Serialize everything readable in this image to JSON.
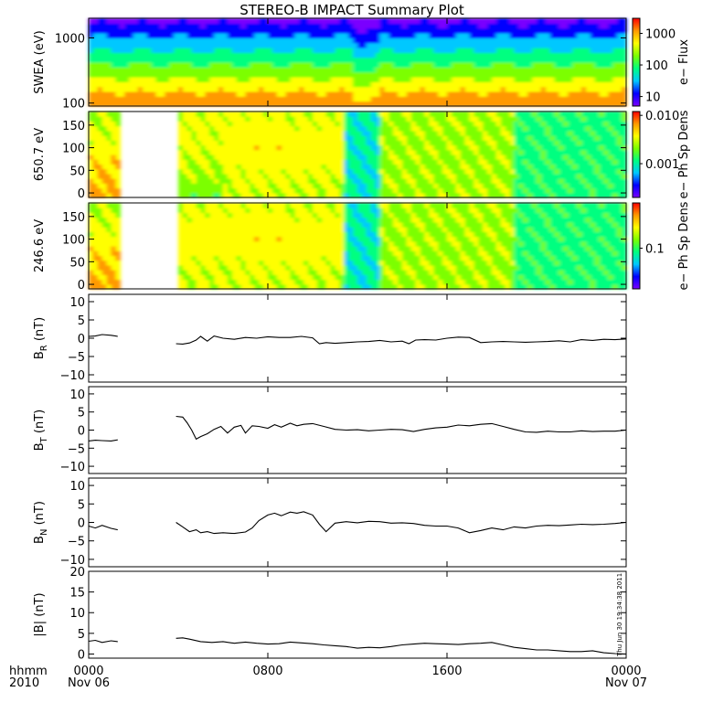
{
  "title": "STEREO-B IMPACT Summary Plot",
  "timestamp_stamp": "Thu Jun 30 19:34:38 2011",
  "x_axis": {
    "row1_label": "hhmm",
    "row2_label": "2010",
    "ticks": [
      {
        "hour": 0,
        "label": "0000",
        "sub": "Nov 06"
      },
      {
        "hour": 8,
        "label": "0800",
        "sub": ""
      },
      {
        "hour": 16,
        "label": "1600",
        "sub": ""
      },
      {
        "hour": 24,
        "label": "0000",
        "sub": "Nov 07"
      }
    ],
    "range_hours": [
      0,
      24
    ]
  },
  "colors": {
    "trace": "#000000",
    "spectrogram_scale": [
      "#7a00ff",
      "#0000ff",
      "#00c8ff",
      "#00ff80",
      "#7cff00",
      "#ffff00",
      "#ff9900",
      "#ff0000"
    ]
  },
  "chart_data": [
    {
      "type": "heatmap",
      "name": "swea",
      "ylabel": "SWEA (eV)",
      "y_scale": "log",
      "ylim": [
        90,
        2000
      ],
      "yticks": [
        {
          "value": 100,
          "label": "100"
        },
        {
          "value": 1000,
          "label": "1000"
        }
      ],
      "colorbar": {
        "label": "e− Flux",
        "scale": "log",
        "ticks": [
          {
            "value": 10,
            "label": "10"
          },
          {
            "value": 100,
            "label": "100"
          },
          {
            "value": 1000,
            "label": "1000"
          }
        ],
        "range": [
          5,
          3000
        ]
      },
      "data_gaps_hours": [],
      "dip_hours": [
        11.8,
        13.0
      ]
    },
    {
      "type": "heatmap",
      "name": "pad650",
      "ylabel": "650.7 eV",
      "ylim": [
        -10,
        180
      ],
      "yticks": [
        {
          "value": 0,
          "label": "0"
        },
        {
          "value": 50,
          "label": "50"
        },
        {
          "value": 100,
          "label": "100"
        },
        {
          "value": 150,
          "label": "150"
        }
      ],
      "colorbar": {
        "label": "e− Ph Sp Dens",
        "scale": "log",
        "ticks": [
          {
            "value": 0.001,
            "label": "0.001"
          },
          {
            "value": 0.01,
            "label": "0.010"
          }
        ],
        "range": [
          0.0002,
          0.012
        ]
      },
      "data_gaps_hours": [
        [
          1.3,
          3.9
        ]
      ],
      "dip_hours": [
        11.5,
        13.0
      ]
    },
    {
      "type": "heatmap",
      "name": "pad246",
      "ylabel": "246.6 eV",
      "ylim": [
        -10,
        180
      ],
      "yticks": [
        {
          "value": 0,
          "label": "0"
        },
        {
          "value": 50,
          "label": "50"
        },
        {
          "value": 100,
          "label": "100"
        },
        {
          "value": 150,
          "label": "150"
        }
      ],
      "colorbar": {
        "label": "e− Ph Sp Dens",
        "scale": "log",
        "ticks": [
          {
            "value": 0.1,
            "label": "0.1"
          }
        ],
        "range": [
          0.02,
          0.6
        ]
      },
      "data_gaps_hours": [
        [
          1.3,
          3.9
        ]
      ],
      "dip_hours": [
        11.5,
        13.0
      ]
    },
    {
      "type": "line",
      "name": "br",
      "ylabel": "B",
      "ylabel_sub": "R",
      "ylabel_unit": "(nT)",
      "ylim": [
        -12,
        12
      ],
      "yticks": [
        {
          "value": -10,
          "label": "−10"
        },
        {
          "value": -5,
          "label": "−5"
        },
        {
          "value": 0,
          "label": "0"
        },
        {
          "value": 5,
          "label": "5"
        },
        {
          "value": 10,
          "label": "10"
        }
      ],
      "x": [
        0.0,
        0.3,
        0.6,
        1.0,
        1.3,
        3.9,
        4.2,
        4.5,
        4.8,
        5.0,
        5.3,
        5.6,
        6.0,
        6.5,
        7.0,
        7.5,
        8.0,
        8.5,
        9.0,
        9.5,
        10.0,
        10.3,
        10.6,
        11.0,
        11.5,
        12.0,
        12.5,
        13.0,
        13.5,
        14.0,
        14.3,
        14.6,
        15.0,
        15.5,
        16.0,
        16.5,
        17.0,
        17.5,
        18.0,
        18.5,
        19.0,
        19.5,
        20.0,
        20.5,
        21.0,
        21.5,
        22.0,
        22.5,
        23.0,
        23.5,
        24.0
      ],
      "y": [
        0.5,
        0.6,
        1.0,
        0.8,
        0.5,
        -1.5,
        -1.6,
        -1.3,
        -0.5,
        0.5,
        -0.8,
        0.6,
        0.0,
        -0.3,
        0.2,
        0.0,
        0.4,
        0.2,
        0.2,
        0.5,
        0.1,
        -1.5,
        -1.2,
        -1.4,
        -1.2,
        -1.0,
        -0.9,
        -0.6,
        -1.0,
        -0.8,
        -1.5,
        -0.5,
        -0.4,
        -0.5,
        0.0,
        0.3,
        0.2,
        -1.2,
        -1.0,
        -0.9,
        -1.0,
        -1.1,
        -1.0,
        -0.9,
        -0.7,
        -1.0,
        -0.4,
        -0.6,
        -0.3,
        -0.4,
        -0.2
      ],
      "gaps_after_index": [
        4
      ]
    },
    {
      "type": "line",
      "name": "bt",
      "ylabel": "B",
      "ylabel_sub": "T",
      "ylabel_unit": "(nT)",
      "ylim": [
        -12,
        12
      ],
      "yticks": [
        {
          "value": -10,
          "label": "−10"
        },
        {
          "value": -5,
          "label": "−5"
        },
        {
          "value": 0,
          "label": "0"
        },
        {
          "value": 5,
          "label": "5"
        },
        {
          "value": 10,
          "label": "10"
        }
      ],
      "x": [
        0.0,
        0.3,
        0.6,
        1.0,
        1.3,
        3.9,
        4.2,
        4.4,
        4.6,
        4.8,
        5.0,
        5.3,
        5.6,
        5.9,
        6.2,
        6.5,
        6.8,
        7.0,
        7.3,
        7.6,
        8.0,
        8.3,
        8.6,
        9.0,
        9.3,
        9.6,
        10.0,
        10.5,
        11.0,
        11.5,
        12.0,
        12.5,
        13.0,
        13.5,
        14.0,
        14.5,
        15.0,
        15.5,
        16.0,
        16.5,
        17.0,
        17.5,
        18.0,
        18.5,
        19.0,
        19.5,
        20.0,
        20.5,
        21.0,
        21.5,
        22.0,
        22.5,
        23.0,
        23.5,
        24.0
      ],
      "y": [
        -3.0,
        -2.8,
        -2.9,
        -3.0,
        -2.7,
        3.8,
        3.6,
        2.0,
        0.0,
        -2.5,
        -1.8,
        -1.0,
        0.2,
        1.0,
        -0.8,
        0.8,
        1.3,
        -0.8,
        1.2,
        1.0,
        0.5,
        1.5,
        0.8,
        1.9,
        1.2,
        1.6,
        1.8,
        1.0,
        0.2,
        0.0,
        0.1,
        -0.2,
        0.0,
        0.2,
        0.1,
        -0.4,
        0.2,
        0.6,
        0.8,
        1.4,
        1.2,
        1.6,
        1.8,
        1.0,
        0.2,
        -0.5,
        -0.6,
        -0.3,
        -0.5,
        -0.5,
        -0.2,
        -0.4,
        -0.3,
        -0.3,
        0.0
      ],
      "gaps_after_index": [
        4
      ]
    },
    {
      "type": "line",
      "name": "bn",
      "ylabel": "B",
      "ylabel_sub": "N",
      "ylabel_unit": "(nT)",
      "ylim": [
        -12,
        12
      ],
      "yticks": [
        {
          "value": -10,
          "label": "−10"
        },
        {
          "value": -5,
          "label": "−5"
        },
        {
          "value": 0,
          "label": "0"
        },
        {
          "value": 5,
          "label": "5"
        },
        {
          "value": 10,
          "label": "10"
        }
      ],
      "x": [
        0.0,
        0.3,
        0.6,
        1.0,
        1.3,
        3.9,
        4.2,
        4.5,
        4.8,
        5.0,
        5.3,
        5.6,
        6.0,
        6.5,
        7.0,
        7.3,
        7.6,
        8.0,
        8.3,
        8.6,
        9.0,
        9.3,
        9.6,
        10.0,
        10.3,
        10.6,
        11.0,
        11.5,
        12.0,
        12.5,
        13.0,
        13.5,
        14.0,
        14.5,
        15.0,
        15.5,
        16.0,
        16.5,
        17.0,
        17.5,
        18.0,
        18.5,
        19.0,
        19.5,
        20.0,
        20.5,
        21.0,
        21.5,
        22.0,
        22.5,
        23.0,
        23.5,
        24.0
      ],
      "y": [
        -1.0,
        -1.5,
        -0.8,
        -1.6,
        -2.0,
        0.0,
        -1.2,
        -2.5,
        -2.0,
        -2.8,
        -2.5,
        -3.0,
        -2.8,
        -3.0,
        -2.6,
        -1.5,
        0.5,
        2.0,
        2.5,
        1.8,
        2.8,
        2.5,
        2.9,
        2.0,
        -0.5,
        -2.5,
        -0.2,
        0.2,
        -0.1,
        0.3,
        0.2,
        -0.2,
        -0.1,
        -0.3,
        -0.8,
        -1.0,
        -1.0,
        -1.5,
        -2.8,
        -2.2,
        -1.5,
        -2.0,
        -1.2,
        -1.5,
        -1.0,
        -0.8,
        -0.9,
        -0.7,
        -0.5,
        -0.6,
        -0.5,
        -0.3,
        0.0
      ],
      "gaps_after_index": [
        4
      ]
    },
    {
      "type": "line",
      "name": "bmag",
      "ylabel": "|B|",
      "ylabel_sub": "",
      "ylabel_unit": "(nT)",
      "ylim": [
        -1,
        20
      ],
      "yticks": [
        {
          "value": 0,
          "label": "0"
        },
        {
          "value": 5,
          "label": "5"
        },
        {
          "value": 10,
          "label": "10"
        },
        {
          "value": 15,
          "label": "15"
        },
        {
          "value": 20,
          "label": "20"
        }
      ],
      "x": [
        0.0,
        0.3,
        0.6,
        1.0,
        1.3,
        3.9,
        4.2,
        4.5,
        5.0,
        5.5,
        6.0,
        6.5,
        7.0,
        7.5,
        8.0,
        8.5,
        9.0,
        9.5,
        10.0,
        10.5,
        11.0,
        11.5,
        12.0,
        12.5,
        13.0,
        13.5,
        14.0,
        14.5,
        15.0,
        15.5,
        16.0,
        16.5,
        17.0,
        17.5,
        18.0,
        18.5,
        19.0,
        19.5,
        20.0,
        20.5,
        21.0,
        21.5,
        22.0,
        22.5,
        23.0,
        23.5,
        24.0
      ],
      "y": [
        3.1,
        3.3,
        2.8,
        3.2,
        3.0,
        3.8,
        3.9,
        3.6,
        3.0,
        2.8,
        3.0,
        2.6,
        2.9,
        2.6,
        2.4,
        2.5,
        2.9,
        2.7,
        2.5,
        2.2,
        2.0,
        1.8,
        1.4,
        1.6,
        1.5,
        1.8,
        2.2,
        2.4,
        2.6,
        2.5,
        2.4,
        2.3,
        2.5,
        2.6,
        2.8,
        2.2,
        1.6,
        1.3,
        1.0,
        1.0,
        0.8,
        0.6,
        0.6,
        0.8,
        0.3,
        0.1,
        0.0
      ],
      "gaps_after_index": [
        4
      ]
    }
  ]
}
